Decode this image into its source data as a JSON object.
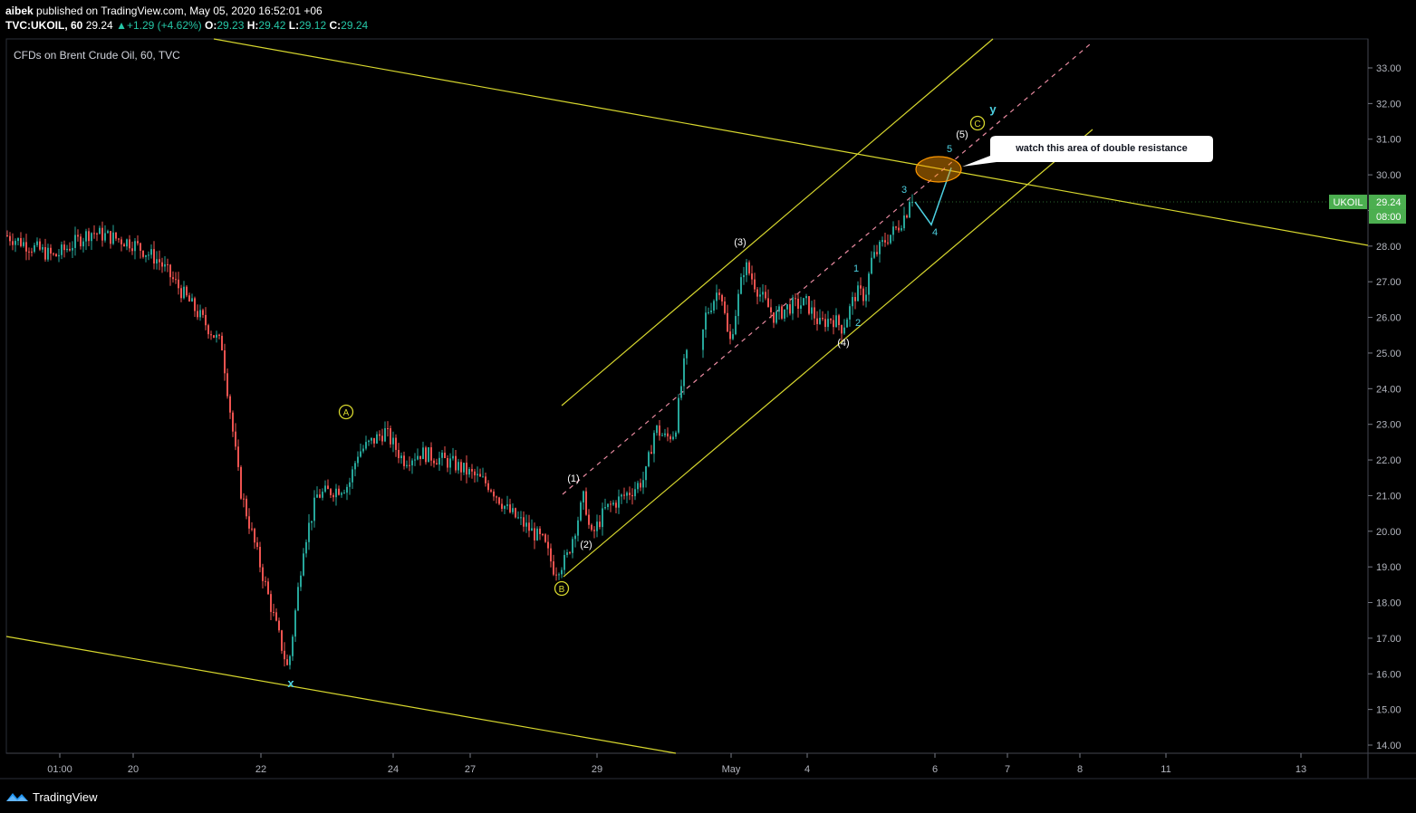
{
  "header": {
    "author": "aibek",
    "published_text": "published on TradingView.com, May 05, 2020 16:52:01 +06",
    "symbol": "TVC:UKOIL, 60",
    "last": "29.24",
    "change": "+1.29 (+4.62%)",
    "open_label": "O:",
    "open": "29.23",
    "high_label": "H:",
    "high": "29.42",
    "low_label": "L:",
    "low": "29.12",
    "close_label": "C:",
    "close": "29.24"
  },
  "footer": {
    "brand": "TradingView",
    "icon": "tradingview-logo-icon"
  },
  "colors": {
    "up": "#26a69a",
    "down": "#ef5350",
    "trendline": "#d7d72e",
    "wave_white": "#ffffff",
    "wave_cyan": "#4dd0e1",
    "tag": "#4caf50",
    "ellipse": "#ff9800"
  },
  "chart_data": {
    "type": "candlestick",
    "title": "CFDs on Brent Crude Oil, 60, TVC",
    "symbol_tag": "UKOIL",
    "last_price": "29.24",
    "countdown": "08:00",
    "ylim": [
      13.7,
      33.6
    ],
    "y_ticks": [
      "14.00",
      "15.00",
      "16.00",
      "17.00",
      "18.00",
      "19.00",
      "20.00",
      "21.00",
      "22.00",
      "23.00",
      "24.00",
      "25.00",
      "26.00",
      "27.00",
      "28.00",
      "29.00",
      "30.00",
      "31.00",
      "32.00",
      "33.00"
    ],
    "x_ticks": [
      "01:00",
      "20",
      "22",
      "24",
      "27",
      "29",
      "May",
      "4",
      "6",
      "7",
      "8",
      "11",
      "13"
    ],
    "price_path": [
      {
        "x": "01:00",
        "y": 28.3
      },
      {
        "x": "20",
        "y": 28.4
      },
      {
        "x": "20",
        "y": 27.8
      },
      {
        "x": "22",
        "y": 21.5
      },
      {
        "x": "22",
        "y": 16.0
      },
      {
        "x": "22",
        "y": 20.3
      },
      {
        "x": "24",
        "y": 22.2
      },
      {
        "x": "24",
        "y": 21.8
      },
      {
        "x": "27",
        "y": 21.5
      },
      {
        "x": "27",
        "y": 19.5
      },
      {
        "x": "29",
        "y": 18.8
      },
      {
        "x": "29",
        "y": 21.1
      },
      {
        "x": "29",
        "y": 20.0
      },
      {
        "x": "29",
        "y": 21.5
      },
      {
        "x": "May",
        "y": 25.0
      },
      {
        "x": "May",
        "y": 24.0
      },
      {
        "x": "May",
        "y": 26.8
      },
      {
        "x": "May",
        "y": 27.9
      },
      {
        "x": "May",
        "y": 26.2
      },
      {
        "x": "4",
        "y": 26.4
      },
      {
        "x": "4",
        "y": 25.6
      },
      {
        "x": "4",
        "y": 27.0
      },
      {
        "x": "4",
        "y": 29.24
      }
    ],
    "wave_labels": [
      {
        "text": "A",
        "style": "circle-yellow"
      },
      {
        "text": "B",
        "style": "circle-yellow"
      },
      {
        "text": "C",
        "style": "circle-yellow"
      },
      {
        "text": "x",
        "style": "cyan"
      },
      {
        "text": "y",
        "style": "cyan"
      },
      {
        "text": "(1)",
        "style": "white"
      },
      {
        "text": "(2)",
        "style": "white"
      },
      {
        "text": "(3)",
        "style": "white"
      },
      {
        "text": "(4)",
        "style": "white"
      },
      {
        "text": "(5)",
        "style": "white"
      },
      {
        "text": "1",
        "style": "cyan"
      },
      {
        "text": "2",
        "style": "cyan"
      },
      {
        "text": "3",
        "style": "cyan"
      },
      {
        "text": "4",
        "style": "cyan"
      },
      {
        "text": "5",
        "style": "cyan"
      }
    ],
    "annotation": "watch this area of double resistance",
    "grid": false,
    "projection_path": [
      29.24,
      28.6,
      30.2
    ]
  }
}
